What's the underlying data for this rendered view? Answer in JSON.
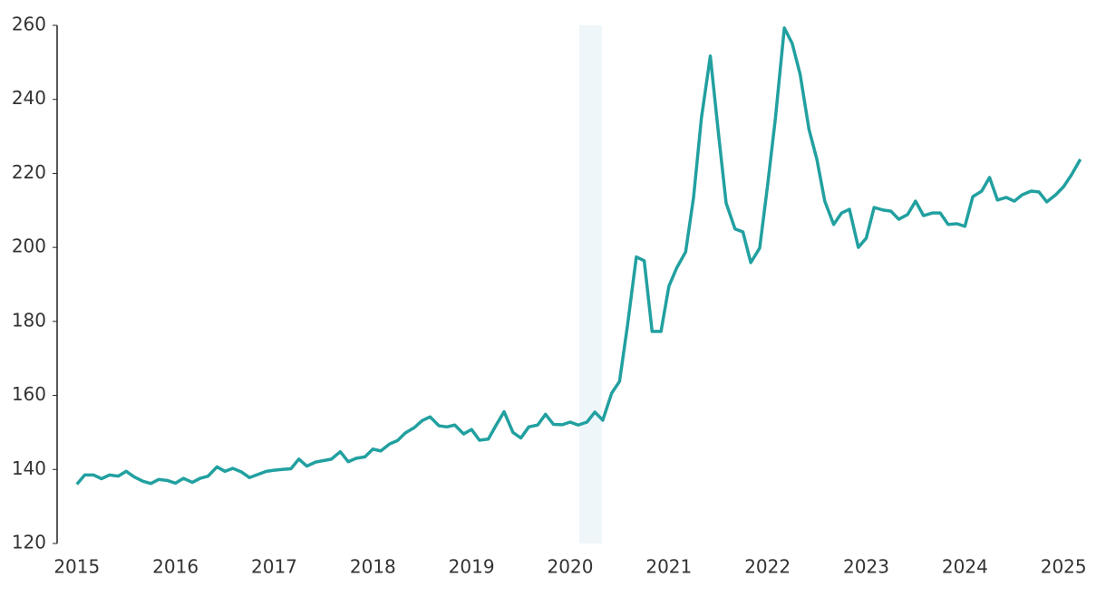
{
  "chart_data": {
    "type": "line",
    "x": [
      2015,
      2015.08,
      2015.17,
      2015.25,
      2015.33,
      2015.42,
      2015.5,
      2015.58,
      2015.67,
      2015.75,
      2015.83,
      2015.92,
      2016,
      2016.08,
      2016.17,
      2016.25,
      2016.33,
      2016.42,
      2016.5,
      2016.58,
      2016.67,
      2016.75,
      2016.83,
      2016.92,
      2017,
      2017.08,
      2017.17,
      2017.25,
      2017.33,
      2017.42,
      2017.5,
      2017.58,
      2017.67,
      2017.75,
      2017.83,
      2017.92,
      2018,
      2018.08,
      2018.17,
      2018.25,
      2018.33,
      2018.42,
      2018.5,
      2018.58,
      2018.67,
      2018.75,
      2018.83,
      2018.92,
      2019,
      2019.08,
      2019.17,
      2019.25,
      2019.33,
      2019.42,
      2019.5,
      2019.58,
      2019.67,
      2019.75,
      2019.83,
      2019.92,
      2020,
      2020.08,
      2020.17,
      2020.25,
      2020.33,
      2020.42,
      2020.5,
      2020.58,
      2020.67,
      2020.75,
      2020.83,
      2020.92,
      2021,
      2021.08,
      2021.17,
      2021.25,
      2021.33,
      2021.42,
      2021.5,
      2021.58,
      2021.67,
      2021.75,
      2021.83,
      2021.92,
      2022,
      2022.08,
      2022.17,
      2022.25,
      2022.33,
      2022.42,
      2022.5,
      2022.58,
      2022.67,
      2022.75,
      2022.83,
      2022.92,
      2023,
      2023.08,
      2023.17,
      2023.25,
      2023.33,
      2023.42,
      2023.5,
      2023.58,
      2023.67,
      2023.75,
      2023.83,
      2023.92,
      2024,
      2024.08,
      2024.17,
      2024.25,
      2024.33,
      2024.42,
      2024.5,
      2024.58,
      2024.67,
      2024.75,
      2024.83,
      2024.92,
      2025,
      2025.08,
      2025.17
    ],
    "series": [
      {
        "color": "#22a0a0",
        "values": [
          136,
          138.5,
          138.5,
          137.5,
          138.5,
          138.2,
          139.5,
          138,
          136.8,
          136.2,
          137.3,
          137,
          136.3,
          137.6,
          136.5,
          137.6,
          138.2,
          140.7,
          139.5,
          140.3,
          139.3,
          137.8,
          138.6,
          139.5,
          139.8,
          140,
          140.2,
          142.8,
          140.9,
          142,
          142.4,
          142.8,
          144.8,
          142.1,
          143,
          143.4,
          145.5,
          145,
          146.9,
          147.8,
          149.9,
          151.3,
          153.2,
          154.2,
          151.8,
          151.5,
          152,
          149.6,
          150.8,
          147.9,
          148.2,
          152,
          155.6,
          150,
          148.5,
          151.5,
          152,
          154.9,
          152.2,
          152.1,
          152.8,
          152,
          152.8,
          155.5,
          153.3,
          160.6,
          163.8,
          178.8,
          197.4,
          196.4,
          177.3,
          177.3,
          189.5,
          194.5,
          198.8,
          213.5,
          235,
          251.7,
          231.4,
          212,
          205,
          204.2,
          195.9,
          199.8,
          216.7,
          235,
          259.3,
          255.1,
          246.8,
          231.9,
          223.8,
          212.5,
          206.2,
          209.3,
          210.3,
          200,
          202.5,
          210.8,
          210.1,
          209.8,
          207.6,
          208.9,
          212.5,
          208.6,
          209.3,
          209.3,
          206.2,
          206.4,
          205.7,
          213.7,
          215.2,
          218.9,
          212.8,
          213.5,
          212.5,
          214.2,
          215.2,
          215,
          212.3,
          214.2,
          216.4,
          219.6,
          223.8
        ]
      }
    ],
    "shaded_band": {
      "x": [
        2020.09,
        2020.32
      ],
      "color": "#eef6f9"
    },
    "xlim": [
      2014.8,
      2025.43
    ],
    "xticks": [
      2015,
      2016,
      2017,
      2018,
      2019,
      2020,
      2021,
      2022,
      2023,
      2024,
      2025
    ],
    "ylim": [
      120,
      260
    ],
    "yticks": [
      120,
      140,
      160,
      180,
      200,
      220,
      240,
      260
    ],
    "grid": false
  }
}
